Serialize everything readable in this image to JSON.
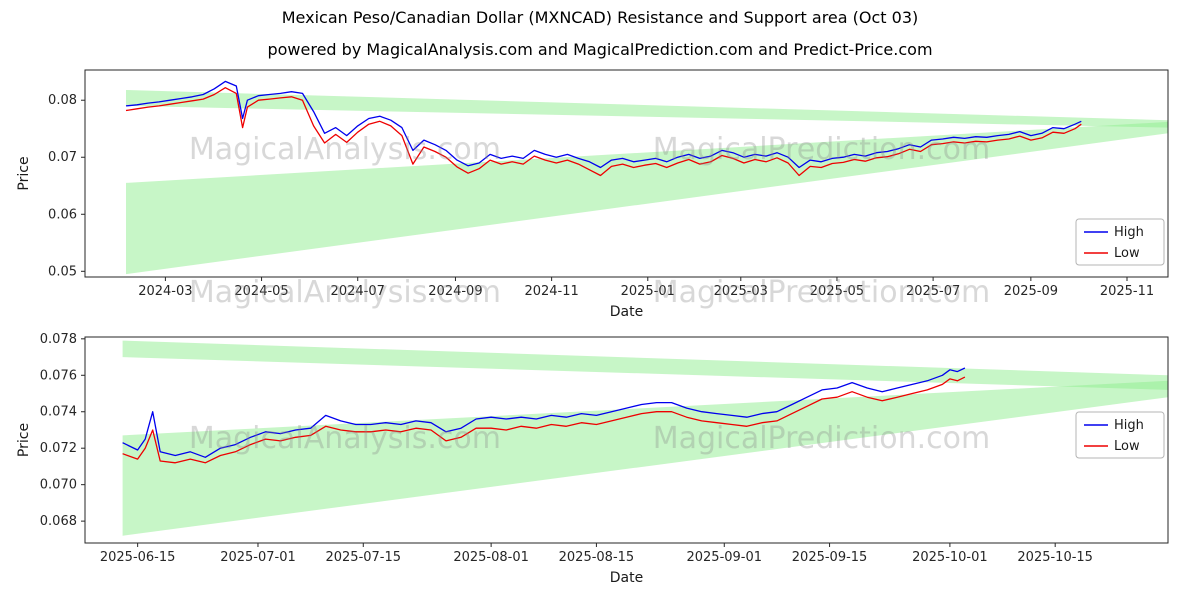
{
  "header": {
    "title": "Mexican Peso/Canadian Dollar (MXNCAD) Resistance and Support area (Oct 03)",
    "subtitle": "powered by MagicalAnalysis.com and MagicalPrediction.com and Predict-Price.com"
  },
  "watermarks": [
    "MagicalAnalysis.com",
    "MagicalPrediction.com"
  ],
  "colors": {
    "high": "#0000ee",
    "low": "#ee0000",
    "band": "#90ee90",
    "spine": "#262626",
    "tick_label": "#262626",
    "watermark": "#8a8a8a",
    "legend_border": "#b5b5b5"
  },
  "chart_data": [
    {
      "type": "line",
      "title": "",
      "xlabel": "Date",
      "ylabel": "Price",
      "xlim": [
        "2024-01-10",
        "2025-11-27"
      ],
      "ylim": [
        0.049,
        0.0853
      ],
      "xticks": {
        "values": [
          "2024-03-01",
          "2024-05-01",
          "2024-07-01",
          "2024-09-01",
          "2024-11-01",
          "2025-01-01",
          "2025-03-01",
          "2025-05-01",
          "2025-07-01",
          "2025-09-01",
          "2025-11-01"
        ],
        "labels": [
          "2024-03",
          "2024-05",
          "2024-07",
          "2024-09",
          "2024-11",
          "2025-01",
          "2025-03",
          "2025-05",
          "2025-07",
          "2025-09",
          "2025-11"
        ]
      },
      "yticks": {
        "values": [
          0.05,
          0.06,
          0.07,
          0.08
        ],
        "labels": [
          "0.05",
          "0.06",
          "0.07",
          "0.08"
        ]
      },
      "legend": {
        "entries": [
          "High",
          "Low"
        ],
        "position": "center right"
      },
      "x": [
        "2024-02-05",
        "2024-02-12",
        "2024-02-19",
        "2024-02-26",
        "2024-03-04",
        "2024-03-11",
        "2024-03-18",
        "2024-03-25",
        "2024-04-01",
        "2024-04-08",
        "2024-04-15",
        "2024-04-19",
        "2024-04-22",
        "2024-04-29",
        "2024-05-06",
        "2024-05-13",
        "2024-05-20",
        "2024-05-27",
        "2024-06-03",
        "2024-06-10",
        "2024-06-17",
        "2024-06-24",
        "2024-07-01",
        "2024-07-08",
        "2024-07-15",
        "2024-07-22",
        "2024-07-29",
        "2024-08-05",
        "2024-08-12",
        "2024-08-19",
        "2024-08-26",
        "2024-09-02",
        "2024-09-09",
        "2024-09-16",
        "2024-09-23",
        "2024-09-30",
        "2024-10-07",
        "2024-10-14",
        "2024-10-21",
        "2024-10-28",
        "2024-11-04",
        "2024-11-11",
        "2024-11-18",
        "2024-11-25",
        "2024-12-02",
        "2024-12-09",
        "2024-12-16",
        "2024-12-23",
        "2024-12-30",
        "2025-01-06",
        "2025-01-13",
        "2025-01-20",
        "2025-01-27",
        "2025-02-03",
        "2025-02-10",
        "2025-02-17",
        "2025-02-24",
        "2025-03-03",
        "2025-03-10",
        "2025-03-17",
        "2025-03-24",
        "2025-03-31",
        "2025-04-07",
        "2025-04-14",
        "2025-04-21",
        "2025-04-28",
        "2025-05-05",
        "2025-05-12",
        "2025-05-19",
        "2025-05-26",
        "2025-06-02",
        "2025-06-09",
        "2025-06-16",
        "2025-06-23",
        "2025-06-30",
        "2025-07-07",
        "2025-07-14",
        "2025-07-21",
        "2025-07-28",
        "2025-08-04",
        "2025-08-11",
        "2025-08-18",
        "2025-08-25",
        "2025-09-01",
        "2025-09-08",
        "2025-09-15",
        "2025-09-22",
        "2025-09-29",
        "2025-10-03"
      ],
      "series": [
        {
          "name": "High",
          "color": "#0000ee",
          "values": [
            0.079,
            0.0792,
            0.0795,
            0.0797,
            0.08,
            0.0803,
            0.0806,
            0.081,
            0.082,
            0.0833,
            0.0825,
            0.0768,
            0.08,
            0.0808,
            0.081,
            0.0812,
            0.0815,
            0.0812,
            0.078,
            0.0742,
            0.0752,
            0.0738,
            0.0755,
            0.0768,
            0.0772,
            0.0765,
            0.0752,
            0.0712,
            0.073,
            0.0722,
            0.0712,
            0.0695,
            0.0685,
            0.069,
            0.0705,
            0.0698,
            0.0702,
            0.0698,
            0.0712,
            0.0705,
            0.07,
            0.0705,
            0.0698,
            0.0692,
            0.0682,
            0.0695,
            0.0698,
            0.0692,
            0.0695,
            0.0698,
            0.0692,
            0.07,
            0.0705,
            0.0698,
            0.0702,
            0.0712,
            0.0708,
            0.07,
            0.0705,
            0.0702,
            0.0708,
            0.07,
            0.0682,
            0.0695,
            0.0692,
            0.0698,
            0.07,
            0.0705,
            0.0702,
            0.0708,
            0.071,
            0.0715,
            0.0722,
            0.0718,
            0.073,
            0.0732,
            0.0735,
            0.0733,
            0.0736,
            0.0735,
            0.0738,
            0.074,
            0.0745,
            0.0738,
            0.0742,
            0.0752,
            0.075,
            0.0758,
            0.0763
          ]
        },
        {
          "name": "Low",
          "color": "#ee0000",
          "values": [
            0.0782,
            0.0785,
            0.0788,
            0.079,
            0.0793,
            0.0796,
            0.0799,
            0.0802,
            0.081,
            0.0822,
            0.0812,
            0.0752,
            0.0788,
            0.08,
            0.0802,
            0.0804,
            0.0806,
            0.08,
            0.0755,
            0.0725,
            0.074,
            0.0726,
            0.0744,
            0.0758,
            0.0763,
            0.0755,
            0.0738,
            0.0688,
            0.0718,
            0.071,
            0.07,
            0.0683,
            0.0672,
            0.068,
            0.0695,
            0.0688,
            0.0692,
            0.0688,
            0.0702,
            0.0695,
            0.069,
            0.0695,
            0.0688,
            0.0678,
            0.0668,
            0.0684,
            0.0688,
            0.0682,
            0.0686,
            0.0689,
            0.0682,
            0.069,
            0.0696,
            0.0688,
            0.0692,
            0.0703,
            0.0698,
            0.069,
            0.0696,
            0.0692,
            0.0699,
            0.069,
            0.0668,
            0.0684,
            0.0682,
            0.0689,
            0.0691,
            0.0696,
            0.0693,
            0.0699,
            0.0701,
            0.0706,
            0.0714,
            0.071,
            0.0722,
            0.0724,
            0.0727,
            0.0725,
            0.0728,
            0.0727,
            0.073,
            0.0732,
            0.0737,
            0.073,
            0.0734,
            0.0744,
            0.0742,
            0.075,
            0.0758
          ]
        }
      ],
      "support_resistance_bands": [
        {
          "name": "resistance-band",
          "points": [
            [
              "2024-02-05",
              0.079
            ],
            [
              "2024-02-05",
              0.0818
            ],
            [
              "2025-11-27",
              0.0765
            ],
            [
              "2025-11-27",
              0.0752
            ]
          ]
        },
        {
          "name": "support-band",
          "points": [
            [
              "2024-02-05",
              0.0495
            ],
            [
              "2024-02-05",
              0.0655
            ],
            [
              "2025-11-27",
              0.0762
            ],
            [
              "2025-11-27",
              0.0742
            ]
          ]
        }
      ]
    },
    {
      "type": "line",
      "title": "",
      "xlabel": "Date",
      "ylabel": "Price",
      "xlim": [
        "2025-06-08",
        "2025-10-30"
      ],
      "ylim": [
        0.0668,
        0.0781
      ],
      "xticks": {
        "values": [
          "2025-06-15",
          "2025-07-01",
          "2025-07-15",
          "2025-08-01",
          "2025-08-15",
          "2025-09-01",
          "2025-09-15",
          "2025-10-01",
          "2025-10-15"
        ],
        "labels": [
          "2025-06-15",
          "2025-07-01",
          "2025-07-15",
          "2025-08-01",
          "2025-08-15",
          "2025-09-01",
          "2025-09-15",
          "2025-10-01",
          "2025-10-15"
        ]
      },
      "yticks": {
        "values": [
          0.068,
          0.07,
          0.072,
          0.074,
          0.076,
          0.078
        ],
        "labels": [
          "0.068",
          "0.070",
          "0.072",
          "0.074",
          "0.076",
          "0.078"
        ]
      },
      "legend": {
        "entries": [
          "High",
          "Low"
        ],
        "position": "center right"
      },
      "x": [
        "2025-06-13",
        "2025-06-15",
        "2025-06-16",
        "2025-06-17",
        "2025-06-18",
        "2025-06-20",
        "2025-06-22",
        "2025-06-24",
        "2025-06-26",
        "2025-06-28",
        "2025-06-30",
        "2025-07-02",
        "2025-07-04",
        "2025-07-06",
        "2025-07-08",
        "2025-07-10",
        "2025-07-12",
        "2025-07-14",
        "2025-07-16",
        "2025-07-18",
        "2025-07-20",
        "2025-07-22",
        "2025-07-24",
        "2025-07-26",
        "2025-07-28",
        "2025-07-30",
        "2025-08-01",
        "2025-08-03",
        "2025-08-05",
        "2025-08-07",
        "2025-08-09",
        "2025-08-11",
        "2025-08-13",
        "2025-08-15",
        "2025-08-17",
        "2025-08-19",
        "2025-08-21",
        "2025-08-23",
        "2025-08-25",
        "2025-08-27",
        "2025-08-29",
        "2025-08-31",
        "2025-09-02",
        "2025-09-04",
        "2025-09-06",
        "2025-09-08",
        "2025-09-10",
        "2025-09-12",
        "2025-09-14",
        "2025-09-16",
        "2025-09-18",
        "2025-09-20",
        "2025-09-22",
        "2025-09-24",
        "2025-09-26",
        "2025-09-28",
        "2025-09-30",
        "2025-10-01",
        "2025-10-02",
        "2025-10-03"
      ],
      "series": [
        {
          "name": "High",
          "color": "#0000ee",
          "values": [
            0.0723,
            0.0719,
            0.0725,
            0.074,
            0.0718,
            0.0716,
            0.0718,
            0.0715,
            0.072,
            0.0722,
            0.0726,
            0.0729,
            0.0728,
            0.073,
            0.0731,
            0.0738,
            0.0735,
            0.0733,
            0.0733,
            0.0734,
            0.0733,
            0.0735,
            0.0734,
            0.0729,
            0.0731,
            0.0736,
            0.0737,
            0.0736,
            0.0737,
            0.0736,
            0.0738,
            0.0737,
            0.0739,
            0.0738,
            0.074,
            0.0742,
            0.0744,
            0.0745,
            0.0745,
            0.0742,
            0.074,
            0.0739,
            0.0738,
            0.0737,
            0.0739,
            0.074,
            0.0744,
            0.0748,
            0.0752,
            0.0753,
            0.0756,
            0.0753,
            0.0751,
            0.0753,
            0.0755,
            0.0757,
            0.076,
            0.0763,
            0.0762,
            0.0764
          ]
        },
        {
          "name": "Low",
          "color": "#ee0000",
          "values": [
            0.0717,
            0.0714,
            0.072,
            0.073,
            0.0713,
            0.0712,
            0.0714,
            0.0712,
            0.0716,
            0.0718,
            0.0722,
            0.0725,
            0.0724,
            0.0726,
            0.0727,
            0.0732,
            0.073,
            0.0729,
            0.0729,
            0.073,
            0.0729,
            0.0731,
            0.073,
            0.0724,
            0.0726,
            0.0731,
            0.0731,
            0.073,
            0.0732,
            0.0731,
            0.0733,
            0.0732,
            0.0734,
            0.0733,
            0.0735,
            0.0737,
            0.0739,
            0.074,
            0.074,
            0.0737,
            0.0735,
            0.0734,
            0.0733,
            0.0732,
            0.0734,
            0.0735,
            0.0739,
            0.0743,
            0.0747,
            0.0748,
            0.0751,
            0.0748,
            0.0746,
            0.0748,
            0.075,
            0.0752,
            0.0755,
            0.0758,
            0.0757,
            0.0759
          ]
        }
      ],
      "support_resistance_bands": [
        {
          "name": "resistance-band",
          "points": [
            [
              "2025-06-13",
              0.077
            ],
            [
              "2025-06-13",
              0.0779
            ],
            [
              "2025-10-30",
              0.076
            ],
            [
              "2025-10-30",
              0.0752
            ]
          ]
        },
        {
          "name": "support-band",
          "points": [
            [
              "2025-06-13",
              0.0672
            ],
            [
              "2025-06-13",
              0.0727
            ],
            [
              "2025-10-30",
              0.0757
            ],
            [
              "2025-10-30",
              0.0748
            ]
          ]
        }
      ]
    }
  ]
}
